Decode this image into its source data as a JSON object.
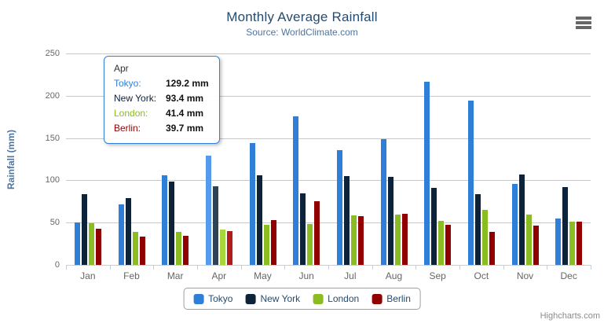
{
  "chart": {
    "title": "Monthly Average Rainfall",
    "subtitle": "Source: WorldClimate.com",
    "y_axis_title": "Rainfall (mm)",
    "credits": "Highcharts.com"
  },
  "chart_data": {
    "type": "bar",
    "title": "Monthly Average Rainfall",
    "subtitle": "Source: WorldClimate.com",
    "xlabel": "",
    "ylabel": "Rainfall (mm)",
    "ylim": [
      0,
      250
    ],
    "y_ticks": [
      0,
      50,
      100,
      150,
      200,
      250
    ],
    "grid": true,
    "legend_position": "bottom",
    "categories": [
      "Jan",
      "Feb",
      "Mar",
      "Apr",
      "May",
      "Jun",
      "Jul",
      "Aug",
      "Sep",
      "Oct",
      "Nov",
      "Dec"
    ],
    "hovered_category": "Apr",
    "series": [
      {
        "name": "Tokyo",
        "color": "#2f7ed8",
        "hover_color": "#549bee",
        "values": [
          49.9,
          71.5,
          106.4,
          129.2,
          144.0,
          176.0,
          135.6,
          148.5,
          216.4,
          194.1,
          95.6,
          54.4
        ]
      },
      {
        "name": "New York",
        "color": "#0d233a",
        "hover_color": "#2b4257",
        "values": [
          83.6,
          78.8,
          98.5,
          93.4,
          106.0,
          84.5,
          105.0,
          104.3,
          91.2,
          83.5,
          106.6,
          92.3
        ]
      },
      {
        "name": "London",
        "color": "#8bbc21",
        "hover_color": "#a6d73d",
        "values": [
          48.9,
          38.8,
          39.3,
          41.4,
          47.0,
          48.3,
          59.0,
          59.6,
          52.4,
          65.2,
          59.3,
          51.2
        ]
      },
      {
        "name": "Berlin",
        "color": "#910000",
        "hover_color": "#af1d1d",
        "values": [
          42.4,
          33.2,
          34.5,
          39.7,
          52.6,
          75.5,
          57.4,
          60.4,
          47.6,
          39.1,
          46.8,
          51.1
        ]
      }
    ]
  },
  "tooltip": {
    "header": "Apr",
    "rows": [
      {
        "label": "Tokyo:",
        "value": "129.2 mm"
      },
      {
        "label": "New York:",
        "value": "93.4 mm"
      },
      {
        "label": "London:",
        "value": "41.4 mm"
      },
      {
        "label": "Berlin:",
        "value": "39.7 mm"
      }
    ]
  },
  "icons": {
    "menu": "hamburger-menu"
  }
}
